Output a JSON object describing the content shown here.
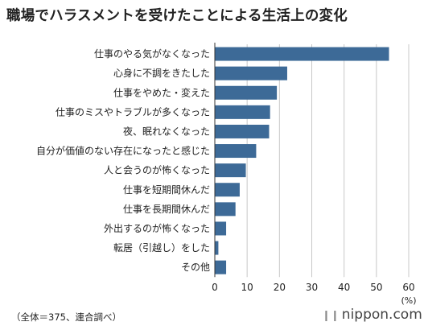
{
  "chart_data": {
    "type": "bar",
    "orientation": "horizontal",
    "title": "職場でハラスメントを受けたことによる生活上の変化",
    "categories": [
      "仕事のやる気がなくなった",
      "心身に不調をきたした",
      "仕事をやめた・変えた",
      "仕事のミスやトラブルが多くなった",
      "夜、眠れなくなった",
      "自分が価値のない存在になったと感じた",
      "人と会うのが怖くなった",
      "仕事を短期間休んだ",
      "仕事を長期間休んだ",
      "外出するのが怖くなった",
      "転居（引越し）をした",
      "その他"
    ],
    "values": [
      53.9,
      22.4,
      19.2,
      17.1,
      16.8,
      12.8,
      9.6,
      7.7,
      6.4,
      3.5,
      1.1,
      3.5
    ],
    "x_ticks": [
      "0",
      "10",
      "20",
      "30",
      "40",
      "50",
      "60"
    ],
    "xlim": [
      0,
      60
    ],
    "unit_label": "(%)",
    "grid": true,
    "bar_color": "#3d6a97",
    "note": "（全体＝375、連合調べ）"
  },
  "logo": {
    "text": "nippon.com",
    "mark": "❙❙"
  }
}
